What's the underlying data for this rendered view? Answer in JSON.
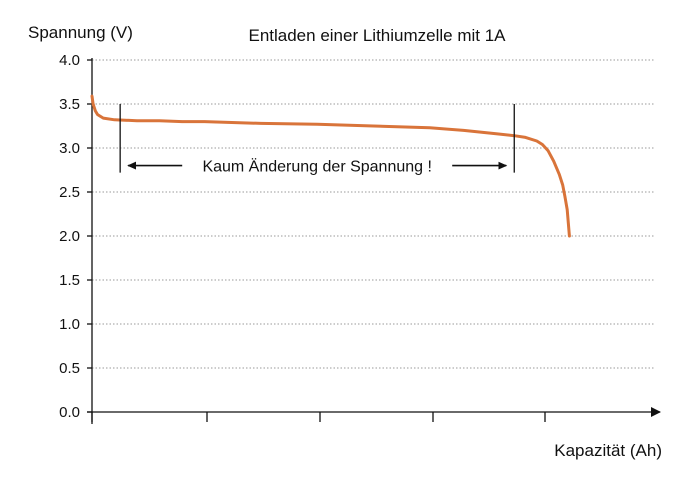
{
  "chart_data": {
    "type": "line",
    "title": "Entladen einer Lithiumzelle mit 1A",
    "ylabel": "Spannung (V)",
    "xlabel": "Kapazität (Ah)",
    "ylim": [
      0,
      4
    ],
    "yticks": [
      "0.0",
      "0.5",
      "1.0",
      "1.5",
      "2.0",
      "2.5",
      "3.0",
      "3.5",
      "4.0"
    ],
    "xticks_count": 5,
    "grid": true,
    "grid_style": "dotted horizontal",
    "line_color": "#d9743a",
    "series": [
      {
        "x": [
          0.0,
          0.01,
          0.03,
          0.05,
          0.1,
          0.2,
          0.4,
          0.6,
          0.8,
          1.0,
          1.5,
          2.0,
          2.5,
          3.0,
          3.3,
          3.6,
          3.75,
          3.85,
          3.95,
          4.0,
          4.05,
          4.1,
          4.15,
          4.18,
          4.2,
          4.22,
          4.23,
          4.24
        ],
        "y": [
          3.59,
          3.5,
          3.42,
          3.38,
          3.34,
          3.32,
          3.31,
          3.31,
          3.3,
          3.3,
          3.28,
          3.27,
          3.25,
          3.23,
          3.2,
          3.16,
          3.14,
          3.12,
          3.08,
          3.04,
          2.97,
          2.85,
          2.7,
          2.58,
          2.45,
          2.3,
          2.15,
          2.0
        ]
      }
    ],
    "annotation": {
      "text": "Kaum Änderung der Spannung !",
      "x_start": 0.25,
      "x_end": 3.75,
      "y": 2.8,
      "marker_top": 3.5,
      "marker_bottom": 2.72
    }
  }
}
